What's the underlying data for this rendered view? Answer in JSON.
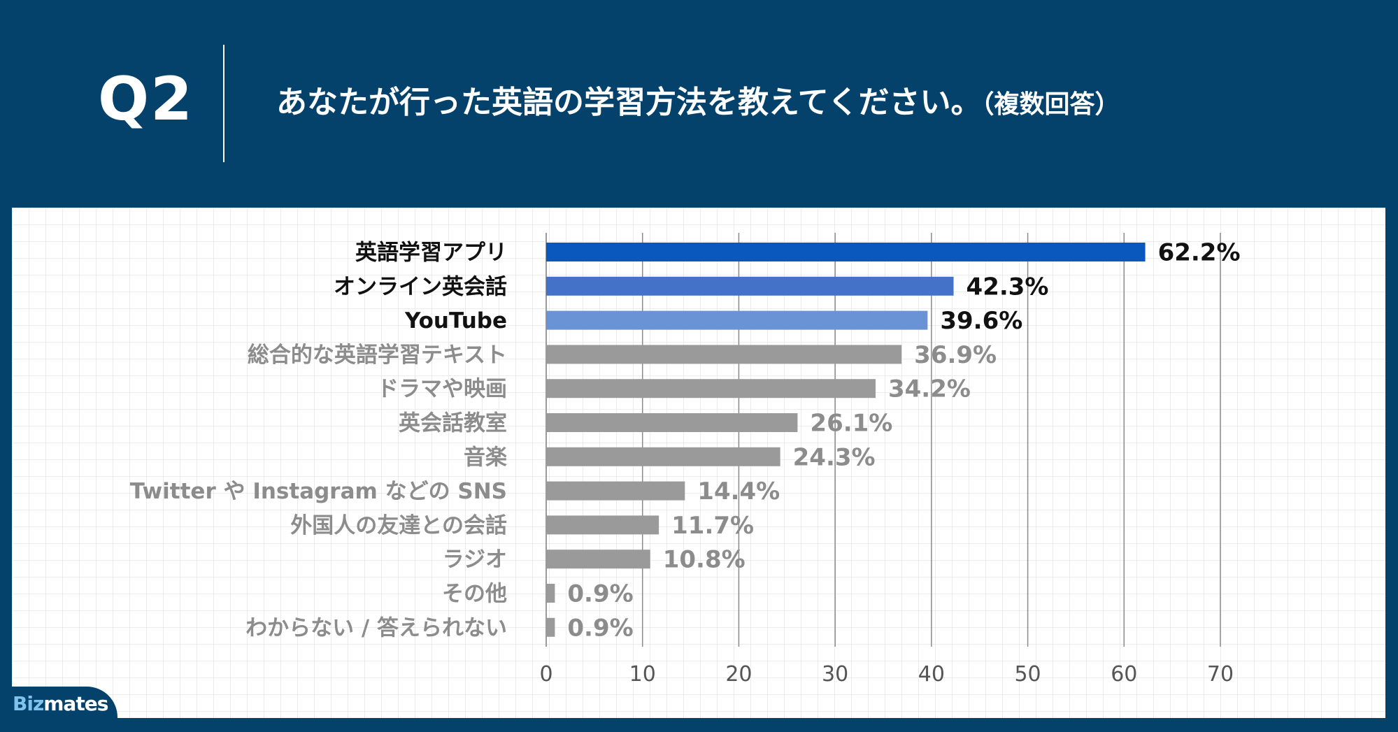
{
  "header": {
    "q_label": "Q2",
    "title_main": "あなたが行った英語の学習方法を教えてください。",
    "title_sub": "（複数回答）"
  },
  "brand": {
    "logo_a": "Biz",
    "logo_b": "mates"
  },
  "colors": {
    "background": "#04426b",
    "bar_top1": "#0a57bd",
    "bar_top2": "#4472c8",
    "bar_top3": "#6a93d6",
    "bar_other": "#9a9a9a",
    "label_top": "#111111",
    "label_other": "#8c8c8c"
  },
  "chart_data": {
    "type": "bar",
    "orientation": "horizontal",
    "categories": [
      "英語学習アプリ",
      "オンライン英会話",
      "YouTube",
      "総合的な英語学習テキスト",
      "ドラマや映画",
      "英会話教室",
      "音楽",
      "Twitter や Instagram などの SNS",
      "外国人の友達との会話",
      "ラジオ",
      "その他",
      "わからない / 答えられない"
    ],
    "values": [
      62.2,
      42.3,
      39.6,
      36.9,
      34.2,
      26.1,
      24.3,
      14.4,
      11.7,
      10.8,
      0.9,
      0.9
    ],
    "value_labels": [
      "62.2%",
      "42.3%",
      "39.6%",
      "36.9%",
      "34.2%",
      "26.1%",
      "24.3%",
      "14.4%",
      "11.7%",
      "10.8%",
      "0.9%",
      "0.9%"
    ],
    "xlim": [
      0,
      70
    ],
    "xticks": [
      "0",
      "10",
      "20",
      "30",
      "40",
      "50",
      "60",
      "70"
    ],
    "grid": true,
    "highlight_top": 3
  }
}
